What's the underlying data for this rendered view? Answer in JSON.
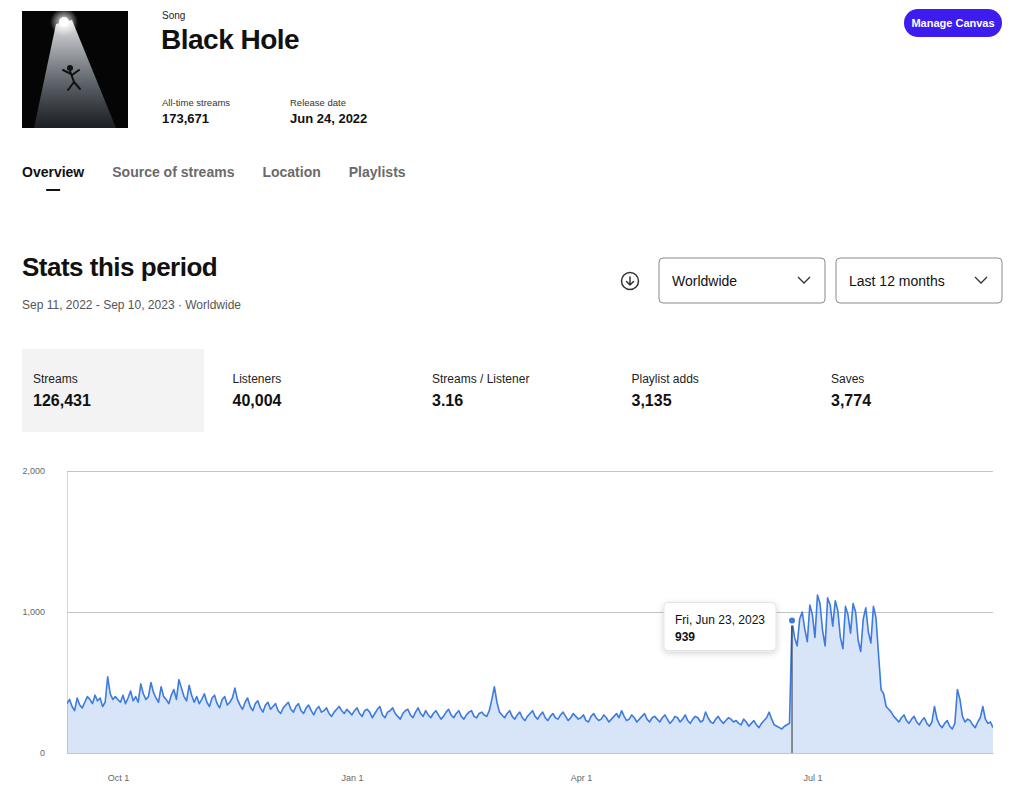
{
  "page": {
    "song_label": "Song",
    "title": "Black Hole",
    "all_time_streams_label": "All-time streams",
    "all_time_streams": "173,671",
    "release_date_label": "Release date",
    "release_date": "Jun 24, 2022",
    "button": "Manage Canvas",
    "tabs": [
      "Overview",
      "Source of streams",
      "Location",
      "Playlists"
    ],
    "stats_heading": "Stats this period",
    "period": "Sep 11, 2022 - Sep 10, 2023 · Worldwide",
    "region_select": "Worldwide",
    "range_select": "Last 12 months",
    "stats": [
      {
        "label": "Streams",
        "value": "126,431"
      },
      {
        "label": "Listeners",
        "value": "40,004"
      },
      {
        "label": "Streams / Listener",
        "value": "3.16"
      },
      {
        "label": "Playlist adds",
        "value": "3,135"
      },
      {
        "label": "Saves",
        "value": "3,774"
      }
    ]
  },
  "chart_data": {
    "type": "area",
    "color": "#3d7be0",
    "grid": true,
    "x": [
      "2022-09-11",
      "2022-09-12",
      "2022-09-13",
      "2022-09-14",
      "2022-09-15",
      "2022-09-16",
      "2022-09-17",
      "2022-09-18",
      "2022-09-19",
      "2022-09-20",
      "2022-09-21",
      "2022-09-22",
      "2022-09-23",
      "2022-09-24",
      "2022-09-25",
      "2022-09-26",
      "2022-09-27",
      "2022-09-28",
      "2022-09-29",
      "2022-09-30",
      "2022-10-01",
      "2022-10-02",
      "2022-10-03",
      "2022-10-04",
      "2022-10-05",
      "2022-10-06",
      "2022-10-07",
      "2022-10-08",
      "2022-10-09",
      "2022-10-10",
      "2022-10-11",
      "2022-10-12",
      "2022-10-13",
      "2022-10-14",
      "2022-10-15",
      "2022-10-16",
      "2022-10-17",
      "2022-10-18",
      "2022-10-19",
      "2022-10-20",
      "2022-10-21",
      "2022-10-22",
      "2022-10-23",
      "2022-10-24",
      "2022-10-25",
      "2022-10-26",
      "2022-10-27",
      "2022-10-28",
      "2022-10-29",
      "2022-10-30",
      "2022-10-31",
      "2022-11-01",
      "2022-11-02",
      "2022-11-03",
      "2022-11-04",
      "2022-11-05",
      "2022-11-06",
      "2022-11-07",
      "2022-11-08",
      "2022-11-09",
      "2022-11-10",
      "2022-11-11",
      "2022-11-12",
      "2022-11-13",
      "2022-11-14",
      "2022-11-15",
      "2022-11-16",
      "2022-11-17",
      "2022-11-18",
      "2022-11-19",
      "2022-11-20",
      "2022-11-21",
      "2022-11-22",
      "2022-11-23",
      "2022-11-24",
      "2022-11-25",
      "2022-11-26",
      "2022-11-27",
      "2022-11-28",
      "2022-11-29",
      "2022-11-30",
      "2022-12-01",
      "2022-12-02",
      "2022-12-03",
      "2022-12-04",
      "2022-12-05",
      "2022-12-06",
      "2022-12-07",
      "2022-12-08",
      "2022-12-09",
      "2022-12-10",
      "2022-12-11",
      "2022-12-12",
      "2022-12-13",
      "2022-12-14",
      "2022-12-15",
      "2022-12-16",
      "2022-12-17",
      "2022-12-18",
      "2022-12-19",
      "2022-12-20",
      "2022-12-21",
      "2022-12-22",
      "2022-12-23",
      "2022-12-24",
      "2022-12-25",
      "2022-12-26",
      "2022-12-27",
      "2022-12-28",
      "2022-12-29",
      "2022-12-30",
      "2022-12-31",
      "2023-01-01",
      "2023-01-02",
      "2023-01-03",
      "2023-01-04",
      "2023-01-05",
      "2023-01-06",
      "2023-01-07",
      "2023-01-08",
      "2023-01-09",
      "2023-01-10",
      "2023-01-11",
      "2023-01-12",
      "2023-01-13",
      "2023-01-14",
      "2023-01-15",
      "2023-01-16",
      "2023-01-17",
      "2023-01-18",
      "2023-01-19",
      "2023-01-20",
      "2023-01-21",
      "2023-01-22",
      "2023-01-23",
      "2023-01-24",
      "2023-01-25",
      "2023-01-26",
      "2023-01-27",
      "2023-01-28",
      "2023-01-29",
      "2023-01-30",
      "2023-01-31",
      "2023-02-01",
      "2023-02-02",
      "2023-02-03",
      "2023-02-04",
      "2023-02-05",
      "2023-02-06",
      "2023-02-07",
      "2023-02-08",
      "2023-02-09",
      "2023-02-10",
      "2023-02-11",
      "2023-02-12",
      "2023-02-13",
      "2023-02-14",
      "2023-02-15",
      "2023-02-16",
      "2023-02-17",
      "2023-02-18",
      "2023-02-19",
      "2023-02-20",
      "2023-02-21",
      "2023-02-22",
      "2023-02-23",
      "2023-02-24",
      "2023-02-25",
      "2023-02-26",
      "2023-02-27",
      "2023-02-28",
      "2023-03-01",
      "2023-03-02",
      "2023-03-03",
      "2023-03-04",
      "2023-03-05",
      "2023-03-06",
      "2023-03-07",
      "2023-03-08",
      "2023-03-09",
      "2023-03-10",
      "2023-03-11",
      "2023-03-12",
      "2023-03-13",
      "2023-03-14",
      "2023-03-15",
      "2023-03-16",
      "2023-03-17",
      "2023-03-18",
      "2023-03-19",
      "2023-03-20",
      "2023-03-21",
      "2023-03-22",
      "2023-03-23",
      "2023-03-24",
      "2023-03-25",
      "2023-03-26",
      "2023-03-27",
      "2023-03-28",
      "2023-03-29",
      "2023-03-30",
      "2023-03-31",
      "2023-04-01",
      "2023-04-02",
      "2023-04-03",
      "2023-04-04",
      "2023-04-05",
      "2023-04-06",
      "2023-04-07",
      "2023-04-08",
      "2023-04-09",
      "2023-04-10",
      "2023-04-11",
      "2023-04-12",
      "2023-04-13",
      "2023-04-14",
      "2023-04-15",
      "2023-04-16",
      "2023-04-17",
      "2023-04-18",
      "2023-04-19",
      "2023-04-20",
      "2023-04-21",
      "2023-04-22",
      "2023-04-23",
      "2023-04-24",
      "2023-04-25",
      "2023-04-26",
      "2023-04-27",
      "2023-04-28",
      "2023-04-29",
      "2023-04-30",
      "2023-05-01",
      "2023-05-02",
      "2023-05-03",
      "2023-05-04",
      "2023-05-05",
      "2023-05-06",
      "2023-05-07",
      "2023-05-08",
      "2023-05-09",
      "2023-05-10",
      "2023-05-11",
      "2023-05-12",
      "2023-05-13",
      "2023-05-14",
      "2023-05-15",
      "2023-05-16",
      "2023-05-17",
      "2023-05-18",
      "2023-05-19",
      "2023-05-20",
      "2023-05-21",
      "2023-05-22",
      "2023-05-23",
      "2023-05-24",
      "2023-05-25",
      "2023-05-26",
      "2023-05-27",
      "2023-05-28",
      "2023-05-29",
      "2023-05-30",
      "2023-05-31",
      "2023-06-01",
      "2023-06-02",
      "2023-06-03",
      "2023-06-04",
      "2023-06-05",
      "2023-06-06",
      "2023-06-07",
      "2023-06-08",
      "2023-06-09",
      "2023-06-10",
      "2023-06-11",
      "2023-06-12",
      "2023-06-13",
      "2023-06-14",
      "2023-06-15",
      "2023-06-16",
      "2023-06-17",
      "2023-06-18",
      "2023-06-19",
      "2023-06-20",
      "2023-06-21",
      "2023-06-22",
      "2023-06-23",
      "2023-06-24",
      "2023-06-25",
      "2023-06-26",
      "2023-06-27",
      "2023-06-28",
      "2023-06-29",
      "2023-06-30",
      "2023-07-01",
      "2023-07-02",
      "2023-07-03",
      "2023-07-04",
      "2023-07-05",
      "2023-07-06",
      "2023-07-07",
      "2023-07-08",
      "2023-07-09",
      "2023-07-10",
      "2023-07-11",
      "2023-07-12",
      "2023-07-13",
      "2023-07-14",
      "2023-07-15",
      "2023-07-16",
      "2023-07-17",
      "2023-07-18",
      "2023-07-19",
      "2023-07-20",
      "2023-07-21",
      "2023-07-22",
      "2023-07-23",
      "2023-07-24",
      "2023-07-25",
      "2023-07-26",
      "2023-07-27",
      "2023-07-28",
      "2023-07-29",
      "2023-07-30",
      "2023-07-31",
      "2023-08-01",
      "2023-08-02",
      "2023-08-03",
      "2023-08-04",
      "2023-08-05",
      "2023-08-06",
      "2023-08-07",
      "2023-08-08",
      "2023-08-09",
      "2023-08-10",
      "2023-08-11",
      "2023-08-12",
      "2023-08-13",
      "2023-08-14",
      "2023-08-15",
      "2023-08-16",
      "2023-08-17",
      "2023-08-18",
      "2023-08-19",
      "2023-08-20",
      "2023-08-21",
      "2023-08-22",
      "2023-08-23",
      "2023-08-24",
      "2023-08-25",
      "2023-08-26",
      "2023-08-27",
      "2023-08-28",
      "2023-08-29",
      "2023-08-30",
      "2023-08-31",
      "2023-09-01",
      "2023-09-02",
      "2023-09-03",
      "2023-09-04",
      "2023-09-05",
      "2023-09-06",
      "2023-09-07",
      "2023-09-08",
      "2023-09-09",
      "2023-09-10"
    ],
    "values": [
      350,
      380,
      330,
      300,
      390,
      340,
      320,
      360,
      400,
      380,
      350,
      410,
      370,
      390,
      330,
      360,
      540,
      420,
      380,
      400,
      380,
      360,
      410,
      350,
      390,
      440,
      370,
      400,
      360,
      490,
      420,
      380,
      400,
      500,
      430,
      390,
      360,
      470,
      400,
      380,
      350,
      410,
      450,
      380,
      520,
      460,
      400,
      370,
      480,
      410,
      360,
      400,
      350,
      380,
      420,
      360,
      330,
      390,
      410,
      350,
      320,
      380,
      400,
      340,
      360,
      390,
      460,
      380,
      340,
      310,
      360,
      390,
      330,
      300,
      350,
      370,
      320,
      290,
      340,
      360,
      310,
      330,
      350,
      300,
      280,
      320,
      340,
      360,
      310,
      290,
      330,
      350,
      300,
      280,
      320,
      340,
      300,
      270,
      310,
      330,
      290,
      300,
      320,
      280,
      260,
      290,
      310,
      330,
      300,
      280,
      310,
      290,
      270,
      300,
      320,
      280,
      260,
      300,
      310,
      290,
      250,
      280,
      310,
      330,
      270,
      250,
      290,
      300,
      320,
      280,
      260,
      240,
      280,
      300,
      310,
      270,
      250,
      290,
      320,
      280,
      260,
      300,
      270,
      250,
      280,
      300,
      270,
      240,
      260,
      290,
      310,
      270,
      250,
      280,
      300,
      260,
      240,
      270,
      290,
      300,
      260,
      250,
      280,
      290,
      270,
      260,
      300,
      380,
      470,
      360,
      290,
      270,
      250,
      280,
      300,
      260,
      240,
      270,
      290,
      250,
      230,
      260,
      280,
      300,
      260,
      240,
      270,
      290,
      250,
      230,
      260,
      280,
      250,
      240,
      270,
      290,
      260,
      230,
      250,
      280,
      260,
      240,
      250,
      270,
      230,
      220,
      260,
      280,
      250,
      230,
      240,
      270,
      250,
      220,
      240,
      260,
      280,
      250,
      300,
      260,
      230,
      240,
      270,
      250,
      220,
      240,
      260,
      280,
      240,
      220,
      250,
      260,
      240,
      220,
      250,
      270,
      240,
      210,
      230,
      260,
      250,
      220,
      240,
      270,
      230,
      210,
      240,
      260,
      250,
      220,
      230,
      290,
      250,
      220,
      210,
      240,
      260,
      230,
      210,
      230,
      250,
      240,
      220,
      230,
      210,
      200,
      240,
      220,
      190,
      210,
      230,
      200,
      180,
      210,
      230,
      250,
      290,
      240,
      200,
      190,
      180,
      170,
      190,
      200,
      210,
      939,
      820,
      760,
      950,
      1000,
      880,
      790,
      1050,
      980,
      820,
      1120,
      1060,
      870,
      760,
      1100,
      1050,
      900,
      1080,
      1010,
      820,
      740,
      1040,
      980,
      850,
      1060,
      1000,
      800,
      720,
      950,
      1030,
      860,
      780,
      1040,
      960,
      700,
      450,
      420,
      330,
      310,
      290,
      260,
      240,
      220,
      250,
      270,
      230,
      210,
      240,
      260,
      220,
      200,
      230,
      250,
      210,
      190,
      220,
      330,
      240,
      200,
      180,
      210,
      230,
      190,
      170,
      210,
      450,
      380,
      260,
      220,
      240,
      230,
      200,
      180,
      220,
      250,
      330,
      240,
      210,
      220,
      180
    ],
    "xlim": [
      "2022-09-11",
      "2023-09-10"
    ],
    "xticks": [
      {
        "value": "2022-10-01",
        "label": "Oct 1"
      },
      {
        "value": "2023-01-01",
        "label": "Jan 1"
      },
      {
        "value": "2023-04-01",
        "label": "Apr 1"
      },
      {
        "value": "2023-07-01",
        "label": "Jul 1"
      }
    ],
    "ylim": [
      0,
      2000
    ],
    "yticks": [
      0,
      {
        "value": 1000,
        "label": "1,000"
      },
      {
        "value": 2000,
        "label": "2,000"
      }
    ],
    "annotations": [
      {
        "x": "2023-06-23",
        "text": "Fri, Jun 23, 2023",
        "value": 939
      }
    ]
  }
}
